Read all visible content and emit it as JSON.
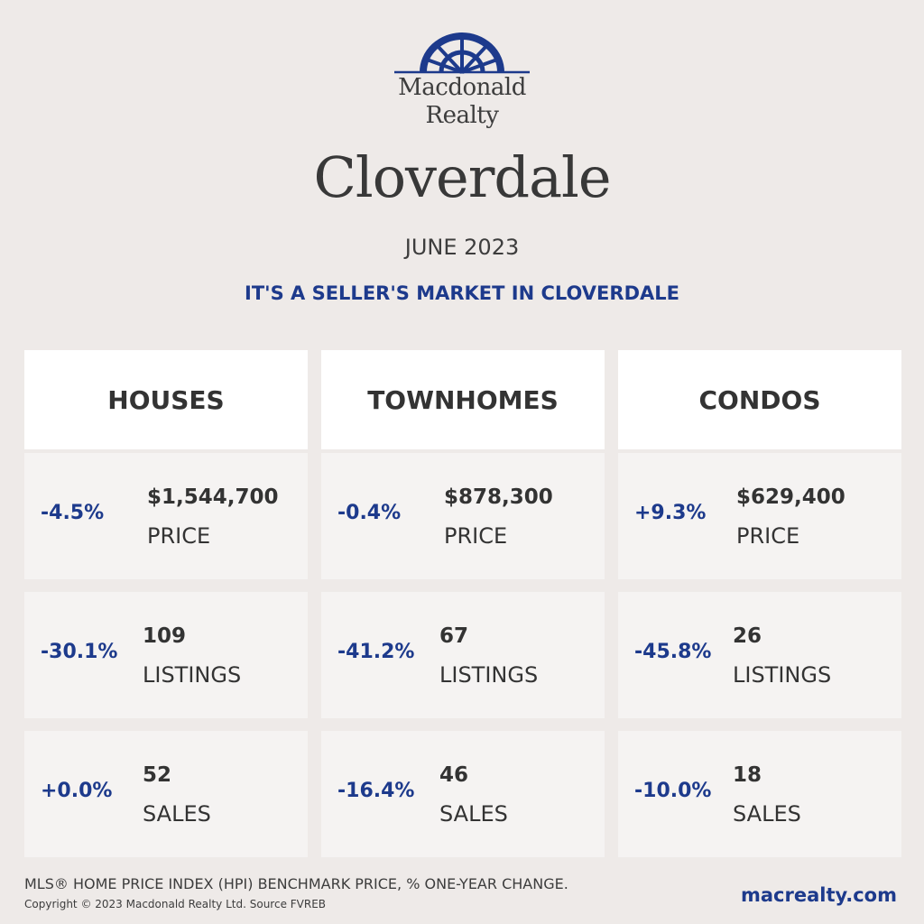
{
  "brand": {
    "logo_line1": "Macdonald",
    "logo_line2": "Realty",
    "accent_color": "#1d3a8c",
    "icon": "sunburst-arch-logo"
  },
  "city": "Cloverdale",
  "period": "JUNE 2023",
  "headline": "IT'S A SELLER'S MARKET IN CLOVERDALE",
  "columns": [
    {
      "title": "HOUSES",
      "price": {
        "change": "-4.5%",
        "value": "$1,544,700",
        "label": "PRICE"
      },
      "listings": {
        "change": "-30.1%",
        "value": "109",
        "label": "LISTINGS"
      },
      "sales": {
        "change": "+0.0%",
        "value": "52",
        "label": "SALES"
      }
    },
    {
      "title": "TOWNHOMES",
      "price": {
        "change": "-0.4%",
        "value": "$878,300",
        "label": "PRICE"
      },
      "listings": {
        "change": "-41.2%",
        "value": "67",
        "label": "LISTINGS"
      },
      "sales": {
        "change": "-16.4%",
        "value": "46",
        "label": "SALES"
      }
    },
    {
      "title": "CONDOS",
      "price": {
        "change": "+9.3%",
        "value": "$629,400",
        "label": "PRICE"
      },
      "listings": {
        "change": "-45.8%",
        "value": "26",
        "label": "LISTINGS"
      },
      "sales": {
        "change": "-10.0%",
        "value": "18",
        "label": "SALES"
      }
    }
  ],
  "footer": {
    "note": "MLS® HOME PRICE INDEX (HPI) BENCHMARK PRICE, % ONE-YEAR CHANGE.",
    "copyright": "Copyright © 2023 Macdonald Realty Ltd. Source FVREB",
    "website": "macrealty.com"
  }
}
